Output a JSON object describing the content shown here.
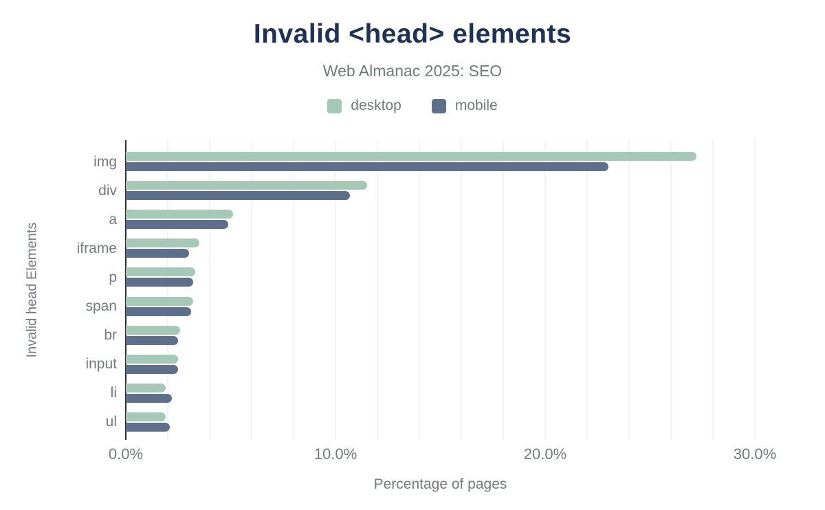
{
  "chart_data": {
    "type": "bar",
    "orientation": "horizontal",
    "title": "Invalid <head> elements",
    "subtitle": "Web Almanac 2025: SEO",
    "categories": [
      "img",
      "div",
      "a",
      "iframe",
      "p",
      "span",
      "br",
      "input",
      "li",
      "ul"
    ],
    "series": [
      {
        "name": "desktop",
        "color": "#a5c9b6",
        "values": [
          27.2,
          11.5,
          5.1,
          3.5,
          3.3,
          3.2,
          2.6,
          2.5,
          1.9,
          1.9
        ]
      },
      {
        "name": "mobile",
        "color": "#5e6f8c",
        "values": [
          23.0,
          10.7,
          4.9,
          3.0,
          3.2,
          3.1,
          2.5,
          2.5,
          2.2,
          2.1
        ]
      }
    ],
    "xlabel": "Percentage of pages",
    "ylabel": "Invalid head Elements",
    "x_ticks": [
      {
        "value": 0,
        "label": "0.0%"
      },
      {
        "value": 10,
        "label": "10.0%"
      },
      {
        "value": 20,
        "label": "20.0%"
      },
      {
        "value": 30,
        "label": "30.0%"
      }
    ],
    "xlim": [
      0,
      31.3
    ],
    "grid": true,
    "grid_step": 2,
    "legend_position": "top"
  },
  "colors": {
    "title": "#203156",
    "muted_text": "#75797f",
    "grid": "#f3f3f6",
    "axis_line": "#2e2e2e",
    "background": "#ffffff"
  }
}
